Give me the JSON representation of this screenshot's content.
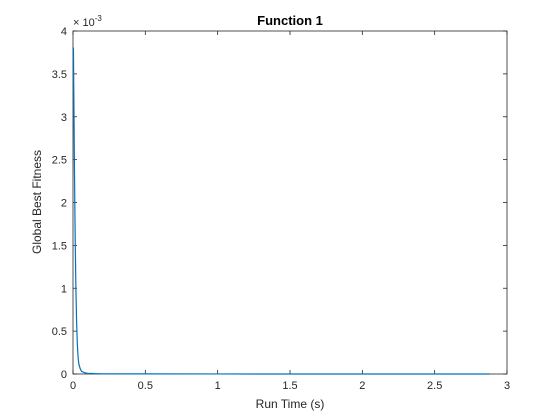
{
  "chart_data": {
    "type": "line",
    "title": "Function 1",
    "xlabel": "Run Time (s)",
    "ylabel": "Global Best Fitness",
    "xlim": [
      0,
      3
    ],
    "ylim": [
      0,
      4
    ],
    "y_exponent_label": "× 10",
    "y_exponent_power": "-3",
    "x_ticks": [
      0,
      0.5,
      1,
      1.5,
      2,
      2.5,
      3
    ],
    "x_tick_labels": [
      "0",
      "0.5",
      "1",
      "1.5",
      "2",
      "2.5",
      "3"
    ],
    "y_ticks": [
      0,
      0.5,
      1,
      1.5,
      2,
      2.5,
      3,
      3.5,
      4
    ],
    "y_tick_labels": [
      "0",
      "0.5",
      "1",
      "1.5",
      "2",
      "2.5",
      "3",
      "3.5",
      "4"
    ],
    "grid": false,
    "line_color": "#0072bd",
    "series": [
      {
        "x": [
          0,
          0.003,
          0.006,
          0.01,
          0.015,
          0.02,
          0.025,
          0.03,
          0.035,
          0.04,
          0.05,
          0.06,
          0.08,
          0.1,
          0.15,
          0.2,
          0.5,
          1,
          1.5,
          2,
          2.5,
          2.88
        ],
        "values": [
          3.8,
          3.8,
          3.2,
          2.4,
          1.6,
          1.0,
          0.6,
          0.35,
          0.2,
          0.12,
          0.06,
          0.03,
          0.015,
          0.008,
          0.004,
          0.002,
          0.001,
          0.0005,
          0.0003,
          0.0002,
          0.0001,
          0.0001
        ]
      }
    ]
  }
}
